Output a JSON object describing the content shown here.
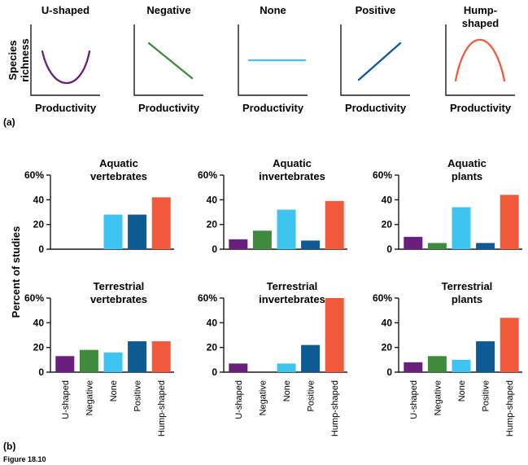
{
  "figure_label": "Figure 18.10",
  "panel_a_label": "(a)",
  "panel_b_label": "(b)",
  "colors": {
    "u_shaped": "#6b1f7c",
    "negative": "#3f8a3c",
    "none": "#3ec4f0",
    "positive": "#0d5a94",
    "hump_shaped": "#f05a3a",
    "axis": "#1a1a1a"
  },
  "chart_data": [
    {
      "type": "line",
      "panel": "a",
      "ylabel_lines": [
        "Species",
        "richness"
      ],
      "xlabel": "Productivity",
      "shapes": [
        {
          "title_lines": [
            "U-shaped"
          ],
          "shape": "u",
          "color_key": "u_shaped"
        },
        {
          "title_lines": [
            "Negative"
          ],
          "shape": "negative",
          "color_key": "negative"
        },
        {
          "title_lines": [
            "None"
          ],
          "shape": "none",
          "color_key": "none"
        },
        {
          "title_lines": [
            "Positive"
          ],
          "shape": "positive",
          "color_key": "positive"
        },
        {
          "title_lines": [
            "Hump-",
            "shaped"
          ],
          "shape": "hump",
          "color_key": "hump_shaped"
        }
      ]
    },
    {
      "type": "bar",
      "panel": "b",
      "ylabel": "Percent of studies",
      "ylim": [
        0,
        60
      ],
      "yticks": [
        "0",
        "20",
        "40",
        "60%"
      ],
      "categories": [
        "U-shaped",
        "Negative",
        "None",
        "Positive",
        "Hump-shaped"
      ],
      "category_color_keys": [
        "u_shaped",
        "negative",
        "none",
        "positive",
        "hump_shaped"
      ],
      "panels": [
        {
          "title_lines": [
            "Aquatic",
            "vertebrates"
          ],
          "values": [
            0,
            0,
            28,
            28,
            42
          ]
        },
        {
          "title_lines": [
            "Aquatic",
            "invertebrates"
          ],
          "values": [
            8,
            15,
            32,
            7,
            39
          ]
        },
        {
          "title_lines": [
            "Aquatic",
            "plants"
          ],
          "values": [
            10,
            5,
            34,
            5,
            44
          ]
        },
        {
          "title_lines": [
            "Terrestrial",
            "vertebrates"
          ],
          "values": [
            13,
            18,
            16,
            25,
            25
          ]
        },
        {
          "title_lines": [
            "Terrestrial",
            "invertebrates"
          ],
          "values": [
            7,
            0,
            7,
            22,
            60
          ]
        },
        {
          "title_lines": [
            "Terrestrial",
            "plants"
          ],
          "values": [
            8,
            13,
            10,
            25,
            44
          ]
        }
      ]
    }
  ]
}
